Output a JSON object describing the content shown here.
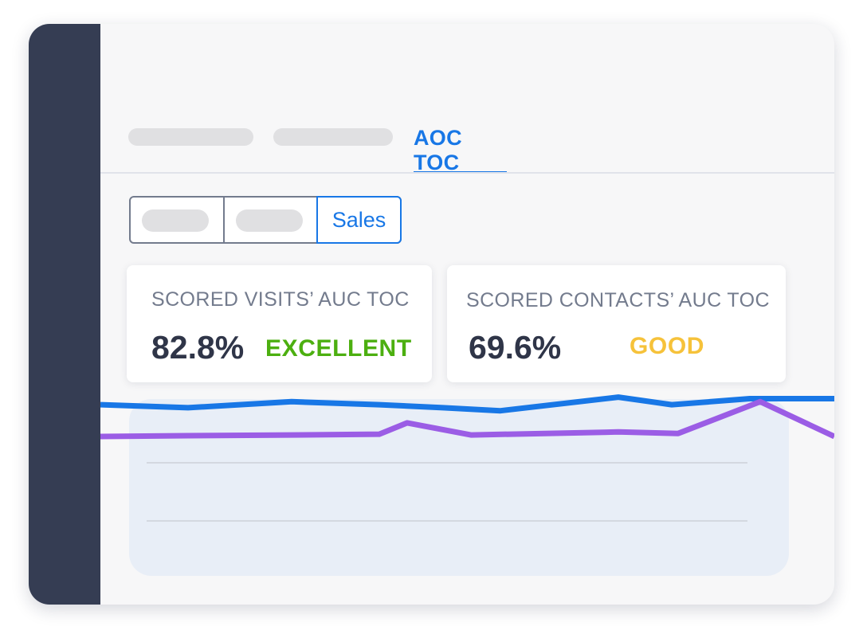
{
  "tabs": {
    "active_label": "AOC TOC"
  },
  "segments": {
    "active_label": "Sales"
  },
  "cards": [
    {
      "title": "SCORED VISITS’ AUC TOC",
      "value": "82.8%",
      "rating": "EXCELLENT",
      "rating_color": "#4caf10"
    },
    {
      "title": "SCORED CONTACTS’ AUC TOC",
      "value": "69.6%",
      "rating": "GOOD",
      "rating_color": "#f6c23a"
    }
  ],
  "colors": {
    "accent": "#1877e6",
    "sidebar": "#353d53",
    "series_2": "#9b5de5"
  },
  "chart_data": {
    "type": "line",
    "x": [
      0,
      1,
      2,
      3,
      4,
      5,
      6,
      7,
      8,
      9,
      10,
      11,
      12,
      13
    ],
    "series": [
      {
        "color": "#1877e6",
        "values": [
          91,
          89,
          93,
          91,
          89,
          87,
          85,
          91,
          96,
          91,
          95,
          95,
          95,
          95
        ]
      },
      {
        "color": "#9b5de5",
        "values": [
          70,
          70.5,
          71,
          71.5,
          72,
          72.5,
          79,
          71,
          71.5,
          73,
          72,
          85,
          93,
          70
        ]
      }
    ],
    "ylim": [
      0,
      100
    ],
    "grid": true
  }
}
